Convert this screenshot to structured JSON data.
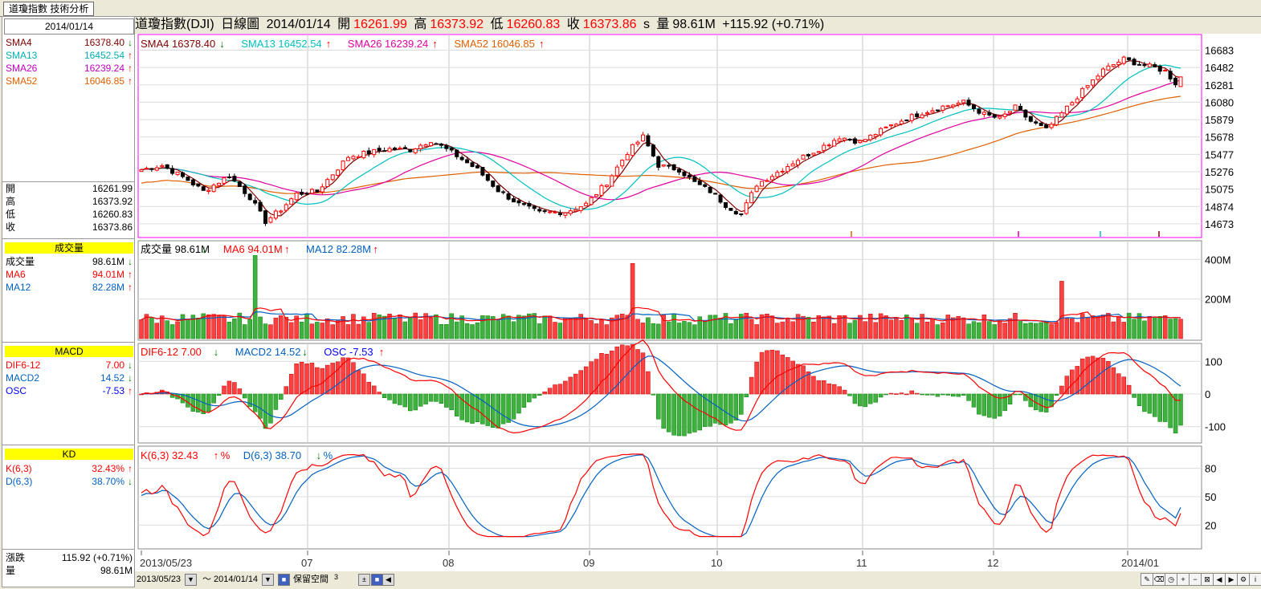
{
  "app": {
    "tab_title": "道瓊指數 技術分析",
    "close_icon": "close-icon"
  },
  "header": {
    "title": "道瓊指數(DJI)",
    "chart_kind": "日線圖",
    "date": "2014/01/14",
    "open_label": "開",
    "open": "16261.99",
    "high_label": "高",
    "high": "16373.92",
    "low_label": "低",
    "low": "16260.83",
    "close_label": "收",
    "close": "16373.86",
    "close_suffix": "s",
    "volume_label": "量",
    "volume": "98.61M",
    "change": "+115.92 (+0.71%)"
  },
  "left_panel": {
    "date": "2014/01/14",
    "sma": [
      {
        "name": "SMA4",
        "value": "16378.40",
        "arrow": "down",
        "color": "#800000"
      },
      {
        "name": "SMA13",
        "value": "16452.54",
        "arrow": "up",
        "color": "#00b0b0"
      },
      {
        "name": "SMA26",
        "value": "16239.24",
        "arrow": "up",
        "color": "#c000c0"
      },
      {
        "name": "SMA52",
        "value": "16046.85",
        "arrow": "up",
        "color": "#e06000"
      }
    ],
    "ohlc": [
      {
        "name": "開",
        "value": "16261.99"
      },
      {
        "name": "高",
        "value": "16373.92"
      },
      {
        "name": "低",
        "value": "16260.83"
      },
      {
        "name": "收",
        "value": "16373.86"
      }
    ],
    "volume_head": "成交量",
    "volume_rows": [
      {
        "name": "成交量",
        "value": "98.61M",
        "arrow": "down",
        "color": "#000000"
      },
      {
        "name": "MA6",
        "value": "94.01M",
        "arrow": "up",
        "color": "#ff0000"
      },
      {
        "name": "MA12",
        "value": "82.28M",
        "arrow": "up",
        "color": "#0060c0"
      }
    ],
    "macd_head": "MACD",
    "macd_rows": [
      {
        "name": "DIF6-12",
        "value": "7.00",
        "arrow": "down",
        "color": "#ff0000"
      },
      {
        "name": "MACD2",
        "value": "14.52",
        "arrow": "down",
        "color": "#0060c0"
      },
      {
        "name": "OSC",
        "value": "-7.53",
        "arrow": "up",
        "color": "#0000ff"
      }
    ],
    "kd_head": "KD",
    "kd_rows": [
      {
        "name": "K(6,3)",
        "value": "32.43%",
        "arrow": "up",
        "color": "#ff0000"
      },
      {
        "name": "D(6,3)",
        "value": "38.70%",
        "arrow": "down",
        "color": "#0060c0"
      }
    ],
    "bottom_rows": [
      {
        "name": "漲跌",
        "value": "115.92 (+0.71%)"
      },
      {
        "name": "量",
        "value": "98.61M"
      }
    ]
  },
  "price_legend": [
    {
      "text": "SMA4 16378.40",
      "arrow": "down",
      "color": "#800000"
    },
    {
      "text": "SMA13 16452.54",
      "arrow": "up",
      "color": "#00c0c0"
    },
    {
      "text": "SMA26 16239.24",
      "arrow": "up",
      "color": "#e000a0"
    },
    {
      "text": "SMA52 16046.85",
      "arrow": "up",
      "color": "#e06000"
    }
  ],
  "volume_legend": [
    {
      "text": "成交量 98.61M",
      "arrow": "down",
      "color": "#000000"
    },
    {
      "text": "MA6 94.01M",
      "arrow": "up",
      "color": "#ff0000"
    },
    {
      "text": "MA12 82.28M",
      "arrow": "up",
      "color": "#0060c0"
    }
  ],
  "macd_legend": [
    {
      "text": "DIF6-12 7.00",
      "arrow": "down",
      "color": "#ff0000"
    },
    {
      "text": "MACD2 14.52",
      "arrow": "down",
      "color": "#0060c0"
    },
    {
      "text": "OSC -7.53",
      "arrow": "up",
      "color": "#0000ff"
    }
  ],
  "kd_legend": [
    {
      "text": "K(6,3) 32.43",
      "suffix": "%",
      "arrow": "up",
      "color": "#ff0000"
    },
    {
      "text": "D(6,3) 38.70",
      "suffix": "%",
      "arrow": "down",
      "color": "#0060c0"
    }
  ],
  "bottom_bar": {
    "start_date": "2013/05/23",
    "tilde": "～",
    "end_date": "2014/01/14",
    "reserve_label": "保留空間",
    "reserve_value": "3"
  },
  "chart_data": [
    {
      "type": "candlestick",
      "title": "道瓊指數(DJI) 日線圖",
      "x_tick_labels": [
        "2013/05/23",
        "07",
        "08",
        "09",
        "10",
        "11",
        "12",
        "2014/01"
      ],
      "y_tick_labels": [
        "16683",
        "16482",
        "16281",
        "16080",
        "15879",
        "15678",
        "15477",
        "15276",
        "15075",
        "14874",
        "14673"
      ],
      "ylim": [
        14570,
        16790
      ],
      "anchor_closes": [
        [
          0,
          15300
        ],
        [
          4,
          15350
        ],
        [
          9,
          15180
        ],
        [
          12,
          15050
        ],
        [
          17,
          15230
        ],
        [
          21,
          14980
        ],
        [
          24,
          14700
        ],
        [
          27,
          14840
        ],
        [
          30,
          15020
        ],
        [
          34,
          15050
        ],
        [
          40,
          15450
        ],
        [
          44,
          15500
        ],
        [
          48,
          15540
        ],
        [
          52,
          15530
        ],
        [
          56,
          15640
        ],
        [
          60,
          15500
        ],
        [
          65,
          15300
        ],
        [
          69,
          15060
        ],
        [
          73,
          14900
        ],
        [
          77,
          14800
        ],
        [
          82,
          14810
        ],
        [
          86,
          14900
        ],
        [
          90,
          15150
        ],
        [
          94,
          15500
        ],
        [
          97,
          15680
        ],
        [
          100,
          15350
        ],
        [
          104,
          15300
        ],
        [
          107,
          15150
        ],
        [
          110,
          15050
        ],
        [
          113,
          14890
        ],
        [
          116,
          14780
        ],
        [
          119,
          15130
        ],
        [
          123,
          15270
        ],
        [
          127,
          15420
        ],
        [
          131,
          15540
        ],
        [
          135,
          15680
        ],
        [
          139,
          15620
        ],
        [
          143,
          15750
        ],
        [
          147,
          15870
        ],
        [
          151,
          15960
        ],
        [
          155,
          16030
        ],
        [
          159,
          16080
        ],
        [
          163,
          15940
        ],
        [
          166,
          15890
        ],
        [
          169,
          16020
        ],
        [
          172,
          15860
        ],
        [
          175,
          15760
        ],
        [
          178,
          15950
        ],
        [
          182,
          16210
        ],
        [
          186,
          16450
        ],
        [
          190,
          16580
        ],
        [
          193,
          16520
        ],
        [
          196,
          16480
        ],
        [
          198,
          16440
        ],
        [
          200,
          16300
        ],
        [
          201,
          16374
        ]
      ],
      "sma4_last": 16378.4,
      "sma13_last": 16452.54,
      "sma26_last": 16239.24,
      "sma52_last": 16046.85
    },
    {
      "type": "bar",
      "title": "成交量",
      "y_tick_labels": [
        "400M",
        "200M"
      ],
      "ylim": [
        0,
        470
      ],
      "typical_volume_M": 100,
      "spikes": [
        [
          22,
          420
        ],
        [
          30,
          115
        ],
        [
          46,
          120
        ],
        [
          95,
          380
        ],
        [
          178,
          290
        ]
      ],
      "last_volume_M": 98.61,
      "ma6_last_M": 94.01,
      "ma12_last_M": 82.28
    },
    {
      "type": "bar",
      "title": "MACD",
      "y_tick_labels": [
        "100",
        "0",
        "-100"
      ],
      "ylim": [
        -135,
        140
      ],
      "dif_last": 7.0,
      "macd_last": 14.52,
      "osc_last": -7.53
    },
    {
      "type": "line",
      "title": "KD",
      "y_tick_labels": [
        "80",
        "50",
        "20"
      ],
      "ylim": [
        0,
        100
      ],
      "k_last": 32.43,
      "d_last": 38.7
    }
  ]
}
